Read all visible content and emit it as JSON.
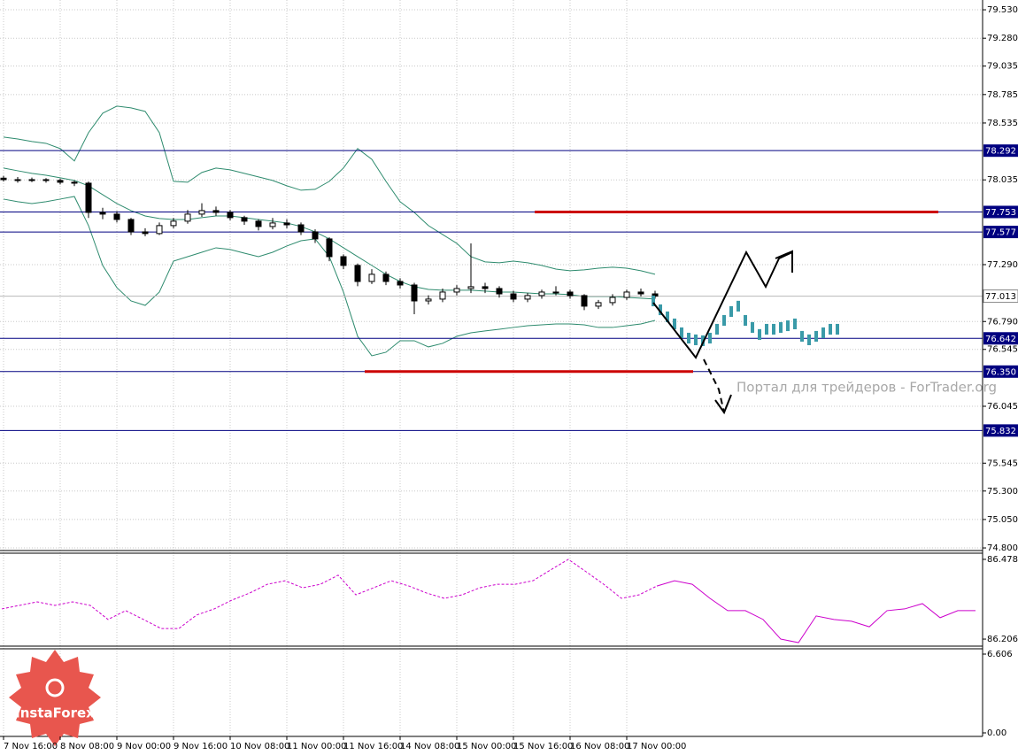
{
  "chart_data": [
    {
      "type": "candlestick",
      "categories": [
        "7 Nov 16:00",
        null,
        null,
        null,
        "8 Nov 08:00",
        null,
        null,
        null,
        "9 Nov 00:00",
        null,
        null,
        null,
        "9 Nov 16:00",
        null,
        null,
        null,
        "10 Nov 08:00",
        null,
        null,
        null,
        "11 Nov 00:00",
        null,
        null,
        null,
        "11 Nov 16:00",
        null,
        null,
        null,
        "14 Nov 08:00",
        null,
        null,
        null,
        "15 Nov 00:00",
        null,
        null,
        null,
        "15 Nov 16:00",
        null,
        null,
        null,
        "16 Nov 08:00",
        null,
        null,
        null,
        "17 Nov 00:00",
        null,
        null
      ],
      "candles": [
        [
          78.05,
          78.07,
          78.02,
          78.037
        ],
        [
          78.037,
          78.06,
          78.01,
          78.03
        ],
        [
          78.03,
          78.055,
          78.015,
          78.037
        ],
        [
          78.037,
          78.05,
          78.01,
          78.03
        ],
        [
          78.03,
          78.045,
          77.995,
          78.014
        ],
        [
          78.014,
          78.03,
          77.98,
          78.006
        ],
        [
          78.006,
          78.02,
          77.7,
          77.749
        ],
        [
          77.749,
          77.79,
          77.69,
          77.734
        ],
        [
          77.734,
          77.76,
          77.66,
          77.687
        ],
        [
          77.687,
          77.7,
          77.55,
          77.578
        ],
        [
          77.578,
          77.61,
          77.54,
          77.563
        ],
        [
          77.563,
          77.66,
          77.55,
          77.633
        ],
        [
          77.633,
          77.7,
          77.61,
          77.672
        ],
        [
          77.672,
          77.77,
          77.65,
          77.734
        ],
        [
          77.734,
          77.83,
          77.71,
          77.765
        ],
        [
          77.765,
          77.8,
          77.72,
          77.749
        ],
        [
          77.749,
          77.77,
          77.68,
          77.703
        ],
        [
          77.703,
          77.72,
          77.64,
          77.672
        ],
        [
          77.672,
          77.69,
          77.59,
          77.625
        ],
        [
          77.625,
          77.7,
          77.6,
          77.656
        ],
        [
          77.656,
          77.69,
          77.61,
          77.64
        ],
        [
          77.64,
          77.66,
          77.55,
          77.578
        ],
        [
          77.578,
          77.6,
          77.48,
          77.516
        ],
        [
          77.516,
          77.53,
          77.32,
          77.36
        ],
        [
          77.36,
          77.38,
          77.25,
          77.283
        ],
        [
          77.283,
          77.3,
          77.1,
          77.142
        ],
        [
          77.142,
          77.25,
          77.12,
          77.205
        ],
        [
          77.205,
          77.23,
          77.11,
          77.142
        ],
        [
          77.142,
          77.17,
          77.08,
          77.111
        ],
        [
          77.111,
          77.13,
          76.854,
          76.971
        ],
        [
          76.971,
          77.02,
          76.94,
          76.987
        ],
        [
          76.987,
          77.08,
          76.96,
          77.049
        ],
        [
          77.049,
          77.11,
          77.02,
          77.08
        ],
        [
          77.08,
          77.477,
          77.04,
          77.096
        ],
        [
          77.096,
          77.13,
          77.04,
          77.08
        ],
        [
          77.08,
          77.1,
          77.0,
          77.033
        ],
        [
          77.033,
          77.06,
          76.96,
          76.987
        ],
        [
          76.987,
          77.04,
          76.96,
          77.018
        ],
        [
          77.018,
          77.07,
          76.99,
          77.049
        ],
        [
          77.049,
          77.1,
          77.02,
          77.049
        ],
        [
          77.049,
          77.07,
          76.99,
          77.018
        ],
        [
          77.018,
          77.03,
          76.89,
          76.925
        ],
        [
          76.925,
          76.98,
          76.9,
          76.956
        ],
        [
          76.956,
          77.03,
          76.93,
          77.002
        ],
        [
          77.002,
          77.07,
          76.98,
          77.049
        ],
        [
          77.049,
          77.08,
          77.01,
          77.033
        ],
        [
          77.033,
          77.06,
          76.99,
          77.013
        ]
      ],
      "series": [
        {
          "color": "#2e8b6e",
          "values": [
            78.411,
            78.395,
            78.372,
            78.356,
            78.31,
            78.201,
            78.45,
            78.621,
            78.683,
            78.668,
            78.637,
            78.45,
            78.022,
            78.014,
            78.1,
            78.139,
            78.123,
            78.092,
            78.061,
            78.03,
            77.983,
            77.944,
            77.952,
            78.022,
            78.139,
            78.31,
            78.216,
            78.022,
            77.843,
            77.749,
            77.633,
            77.555,
            77.477,
            77.36,
            77.314,
            77.306,
            77.321,
            77.306,
            77.283,
            77.251,
            77.236,
            77.244,
            77.259,
            77.267,
            77.259,
            77.236,
            77.205
          ]
        },
        {
          "color": "#2e8b6e",
          "values": [
            78.139,
            78.115,
            78.092,
            78.076,
            78.053,
            78.03,
            77.983,
            77.905,
            77.827,
            77.765,
            77.718,
            77.695,
            77.687,
            77.687,
            77.703,
            77.718,
            77.718,
            77.703,
            77.687,
            77.672,
            77.656,
            77.625,
            77.578,
            77.516,
            77.438,
            77.36,
            77.283,
            77.205,
            77.142,
            77.096,
            77.072,
            77.065,
            77.065,
            77.065,
            77.057,
            77.049,
            77.049,
            77.041,
            77.033,
            77.033,
            77.026,
            77.01,
            77.01,
            77.01,
            77.002,
            76.995,
            76.987
          ]
        },
        {
          "color": "#2e8b6e",
          "values": [
            77.866,
            77.843,
            77.827,
            77.843,
            77.866,
            77.889,
            77.633,
            77.283,
            77.088,
            76.971,
            76.932,
            77.049,
            77.321,
            77.36,
            77.399,
            77.438,
            77.423,
            77.391,
            77.36,
            77.399,
            77.454,
            77.5,
            77.516,
            77.36,
            77.049,
            76.66,
            76.489,
            76.52,
            76.621,
            76.621,
            76.567,
            76.598,
            76.66,
            76.691,
            76.707,
            76.722,
            76.738,
            76.753,
            76.761,
            76.769,
            76.769,
            76.761,
            76.738,
            76.738,
            76.753,
            76.769,
            76.8
          ]
        }
      ],
      "forecast": [
        [
          76.924,
          77.018
        ],
        [
          76.846,
          76.94
        ],
        [
          76.784,
          76.878
        ],
        [
          76.722,
          76.816
        ],
        [
          76.644,
          76.738
        ],
        [
          76.597,
          76.691
        ],
        [
          76.582,
          76.676
        ],
        [
          76.574,
          76.668
        ],
        [
          76.597,
          76.691
        ],
        [
          76.675,
          76.769
        ],
        [
          76.753,
          76.847
        ],
        [
          76.831,
          76.925
        ],
        [
          76.878,
          76.972
        ],
        [
          76.753,
          76.847
        ],
        [
          76.691,
          76.785
        ],
        [
          76.629,
          76.723
        ],
        [
          76.675,
          76.769
        ],
        [
          76.675,
          76.769
        ],
        [
          76.691,
          76.785
        ],
        [
          76.706,
          76.8
        ],
        [
          76.722,
          76.816
        ],
        [
          76.613,
          76.707
        ],
        [
          76.582,
          76.676
        ],
        [
          76.613,
          76.707
        ],
        [
          76.644,
          76.738
        ],
        [
          76.675,
          76.769
        ],
        [
          76.675,
          76.769
        ]
      ],
      "forecast_color": "#3a9aa8",
      "levels": [
        78.292,
        77.753,
        77.577,
        76.642,
        {
          "value": 76.35,
          "label": "76.350"
        },
        75.832
      ],
      "level_color": "#000080",
      "current_price": 77.013,
      "sr_color": "#cc0000",
      "ylim": [
        74.777,
        79.616
      ],
      "yticks": [
        {
          "value": 79.53,
          "label": "79.530"
        },
        {
          "value": 79.28,
          "label": "79.280"
        },
        79.035,
        78.785,
        78.535,
        78.035,
        {
          "value": 77.29,
          "label": "77.290"
        },
        {
          "value": 76.79,
          "label": "76.790"
        },
        76.545,
        76.045,
        75.545,
        {
          "value": 75.3,
          "label": "75.300"
        },
        {
          "value": 75.05,
          "label": "75.050"
        },
        {
          "value": 74.8,
          "label": "74.800"
        }
      ],
      "grid": true
    },
    {
      "type": "line",
      "series": [
        {
          "color": "#cc00cc",
          "dash": true,
          "values": [
            86.309,
            86.321,
            86.333,
            86.321,
            86.333,
            86.321,
            86.273,
            86.303,
            86.273,
            86.242,
            86.242,
            86.288,
            86.309,
            86.339,
            86.363,
            86.393,
            86.405,
            86.381,
            86.393,
            86.424,
            86.357,
            86.381,
            86.405,
            86.387,
            86.363,
            86.345,
            86.357,
            86.381,
            86.393,
            86.393,
            86.405,
            86.442,
            86.478,
            86.436,
            86.393,
            86.345,
            86.357,
            86.387,
            null,
            null,
            null,
            null,
            null,
            null,
            null,
            null,
            null,
            null,
            null,
            null,
            null,
            null,
            null,
            null,
            null,
            null
          ]
        },
        {
          "color": "#cc00cc",
          "dash": false,
          "values": [
            null,
            null,
            null,
            null,
            null,
            null,
            null,
            null,
            null,
            null,
            null,
            null,
            null,
            null,
            null,
            null,
            null,
            null,
            null,
            null,
            null,
            null,
            null,
            null,
            null,
            null,
            null,
            null,
            null,
            null,
            null,
            null,
            null,
            null,
            null,
            null,
            null,
            86.387,
            86.405,
            86.393,
            86.345,
            86.303,
            86.303,
            86.273,
            86.206,
            86.194,
            86.285,
            86.273,
            86.267,
            86.248,
            86.303,
            86.309,
            86.327,
            86.279,
            86.303,
            86.303
          ]
        }
      ],
      "ylim": [
        86.182,
        86.499
      ],
      "yticks": [
        86.478,
        86.206
      ]
    },
    {
      "type": "indicator",
      "ylim": [
        -0.297,
        7.051
      ],
      "yticks": [
        6.606,
        {
          "value": 0,
          "label": "0.00"
        }
      ]
    }
  ],
  "watermark": "Портал для трейдеров - ForTrader.org",
  "logo": "InstaForex"
}
